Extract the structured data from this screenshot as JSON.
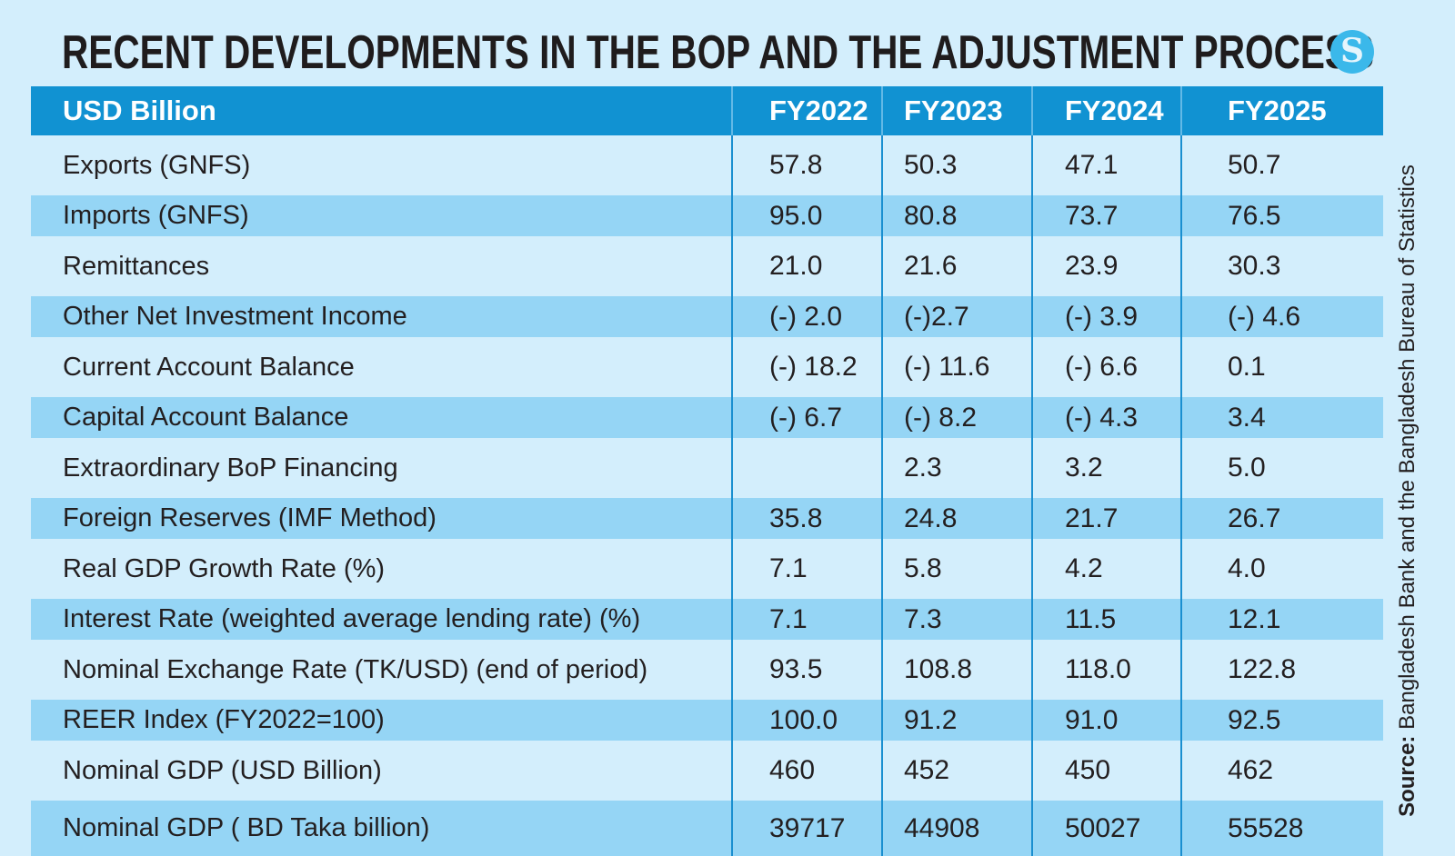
{
  "title": "RECENT DEVELOPMENTS IN THE BOP AND THE ADJUSTMENT PROCESS",
  "logo": {
    "icon": "the-daily-star-logo-icon",
    "glyph": "S",
    "color": "#3bb8ea"
  },
  "colors": {
    "header_bg": "#1192d2",
    "stripe": "#95d5f5",
    "background": "#d3eefc"
  },
  "table": {
    "unit_header": "USD Billion",
    "columns": [
      "FY2022",
      "FY2023",
      "FY2024",
      "FY2025"
    ],
    "rows": [
      {
        "label": "Exports (GNFS)",
        "values": [
          "57.8",
          "50.3",
          "47.1",
          "50.7"
        ]
      },
      {
        "label": "Imports (GNFS)",
        "values": [
          "95.0",
          "80.8",
          "73.7",
          "76.5"
        ]
      },
      {
        "label": "Remittances",
        "values": [
          "21.0",
          "21.6",
          "23.9",
          "30.3"
        ]
      },
      {
        "label": "Other Net Investment Income",
        "values": [
          "(-) 2.0",
          "(-)2.7",
          "(-) 3.9",
          "(-) 4.6"
        ]
      },
      {
        "label": "Current Account Balance",
        "values": [
          "(-) 18.2",
          "(-) 11.6",
          "(-) 6.6",
          "0.1"
        ]
      },
      {
        "label": "Capital Account Balance",
        "values": [
          "(-)  6.7",
          "(-) 8.2",
          "(-) 4.3",
          "3.4"
        ]
      },
      {
        "label": "Extraordinary BoP Financing",
        "values": [
          "",
          "2.3",
          "3.2",
          "5.0"
        ]
      },
      {
        "label": "Foreign Reserves (IMF Method)",
        "values": [
          "35.8",
          "24.8",
          "21.7",
          "26.7"
        ]
      },
      {
        "label": "Real GDP Growth Rate (%)",
        "values": [
          "7.1",
          "5.8",
          "4.2",
          "4.0"
        ]
      },
      {
        "label": "Interest Rate (weighted average lending rate) (%)",
        "values": [
          "7.1",
          "7.3",
          "11.5",
          "12.1"
        ]
      },
      {
        "label": "Nominal Exchange Rate (TK/USD) (end of period)",
        "values": [
          "93.5",
          "108.8",
          "118.0",
          "122.8"
        ]
      },
      {
        "label": "REER Index (FY2022=100)",
        "values": [
          "100.0",
          "91.2",
          "91.0",
          "92.5"
        ]
      },
      {
        "label": "Nominal GDP (USD Billion)",
        "values": [
          "460",
          "452",
          "450",
          "462"
        ]
      },
      {
        "label": "Nominal GDP ( BD Taka billion)",
        "values": [
          "39717",
          "44908",
          "50027",
          "55528"
        ]
      }
    ]
  },
  "source": {
    "prefix": "Source:",
    "text": " Bangladesh Bank and the Bangladesh Bureau of Statistics"
  }
}
